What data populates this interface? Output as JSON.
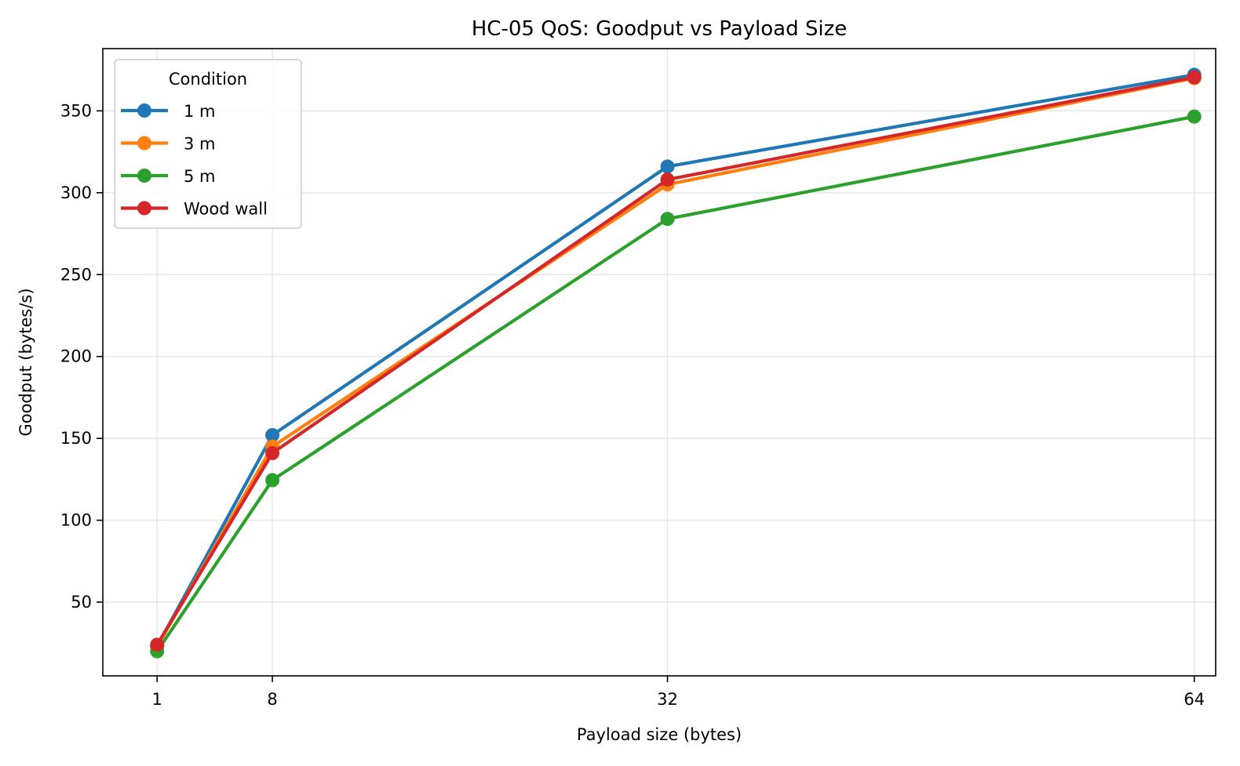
{
  "chart_data": {
    "type": "line",
    "title": "HC-05 QoS: Goodput vs Payload Size",
    "xlabel": "Payload size (bytes)",
    "ylabel": "Goodput (bytes/s)",
    "x": [
      1,
      8,
      32,
      64
    ],
    "x_ticks": [
      1,
      8,
      32,
      64
    ],
    "y_ticks": [
      50,
      100,
      150,
      200,
      250,
      300,
      350
    ],
    "xlim": [
      -2.3,
      65.3
    ],
    "ylim": [
      5,
      388
    ],
    "grid": true,
    "legend": {
      "title": "Condition",
      "position": "upper left"
    },
    "series": [
      {
        "name": "1 m",
        "color": "#1f77b4",
        "values": [
          23,
          152,
          316,
          372
        ]
      },
      {
        "name": "3 m",
        "color": "#ff7f0e",
        "values": [
          23,
          145,
          305,
          370
        ]
      },
      {
        "name": "5 m",
        "color": "#2ca02c",
        "values": [
          20,
          124.5,
          284,
          346.5
        ]
      },
      {
        "name": "Wood wall",
        "color": "#d62728",
        "values": [
          24,
          141,
          308,
          370.5
        ]
      }
    ]
  }
}
